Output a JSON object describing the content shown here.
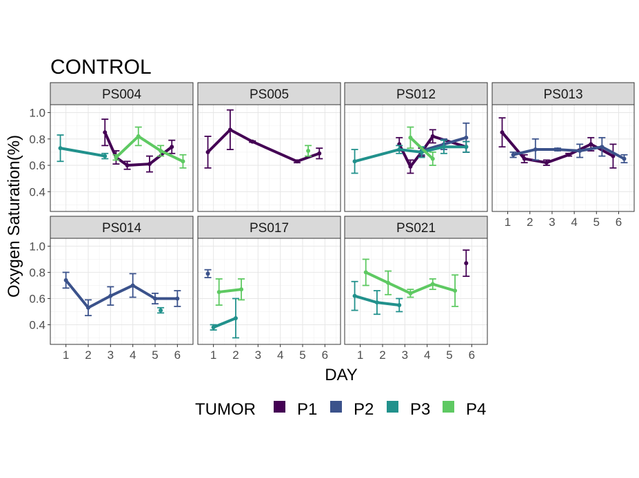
{
  "chart_data": {
    "type": "line",
    "title": "CONTROL",
    "xlabel": "DAY",
    "ylabel": "Oxygen Saturation(%)",
    "x_ticks": [
      "1",
      "2",
      "3",
      "4",
      "5",
      "6"
    ],
    "y_ticks": [
      "0.4",
      "0.6",
      "0.8",
      "1.0"
    ],
    "xlim": [
      0.3,
      6.7
    ],
    "ylim": [
      0.25,
      1.06
    ],
    "grid": true,
    "legend_position": "bottom",
    "legend_title": "TUMOR",
    "series_names": [
      "P1",
      "P2",
      "P3",
      "P4"
    ],
    "colors": {
      "P1": "#440154",
      "P2": "#3b528b",
      "P3": "#21918c",
      "P4": "#5ec962"
    },
    "facets": [
      {
        "name": "PS004",
        "series": [
          {
            "name": "P1",
            "points": [
              [
                2.75,
                0.85,
                0.1
              ],
              [
                3.25,
                0.66,
                0.05
              ],
              [
                3.75,
                0.6,
                0.03
              ],
              [
                4.75,
                0.61,
                0.06
              ],
              [
                5.75,
                0.74,
                0.05
              ]
            ]
          },
          {
            "name": "P3",
            "points": [
              [
                0.75,
                0.73,
                0.1
              ],
              [
                2.75,
                0.67,
                0.02
              ]
            ]
          },
          {
            "name": "P4",
            "points": [
              [
                3.25,
                0.66,
                0.02
              ],
              [
                4.25,
                0.82,
                0.07
              ],
              [
                5.25,
                0.71,
                0.04
              ],
              [
                6.25,
                0.63,
                0.05
              ]
            ]
          }
        ]
      },
      {
        "name": "PS005",
        "series": [
          {
            "name": "P1",
            "points": [
              [
                0.75,
                0.7,
                0.12
              ],
              [
                1.75,
                0.87,
                0.15
              ],
              [
                2.75,
                0.78,
                0.005
              ],
              [
                4.75,
                0.63,
                0.01
              ],
              [
                5.75,
                0.69,
                0.04
              ]
            ]
          },
          {
            "name": "P4",
            "points": [
              [
                5.25,
                0.71,
                0.04
              ]
            ]
          }
        ]
      },
      {
        "name": "PS012",
        "series": [
          {
            "name": "P1",
            "points": [
              [
                2.75,
                0.76,
                0.05
              ],
              [
                3.25,
                0.59,
                0.05
              ],
              [
                3.75,
                0.7,
                0.03
              ],
              [
                4.25,
                0.82,
                0.05
              ],
              [
                5.75,
                0.74,
                0.04
              ]
            ]
          },
          {
            "name": "P2",
            "points": [
              [
                3.75,
                0.71,
                0.03
              ],
              [
                4.75,
                0.76,
                0.04
              ],
              [
                5.75,
                0.81,
                0.11
              ]
            ]
          },
          {
            "name": "P3",
            "points": [
              [
                0.75,
                0.63,
                0.09
              ],
              [
                2.75,
                0.72,
                0.03
              ],
              [
                3.75,
                0.7,
                0.04
              ],
              [
                4.75,
                0.74,
                0.05
              ],
              [
                5.75,
                0.74,
                0.04
              ]
            ]
          },
          {
            "name": "P4",
            "points": [
              [
                3.25,
                0.81,
                0.08
              ],
              [
                4.25,
                0.65,
                0.05
              ]
            ]
          }
        ]
      },
      {
        "name": "PS013",
        "series": [
          {
            "name": "P1",
            "points": [
              [
                0.75,
                0.85,
                0.11
              ],
              [
                1.75,
                0.65,
                0.03
              ],
              [
                2.75,
                0.62,
                0.02
              ],
              [
                3.75,
                0.68,
                0.01
              ],
              [
                4.75,
                0.76,
                0.05
              ],
              [
                5.75,
                0.67,
                0.09
              ]
            ]
          },
          {
            "name": "P2",
            "points": [
              [
                1.25,
                0.68,
                0.02
              ],
              [
                2.25,
                0.72,
                0.08
              ],
              [
                3.25,
                0.72,
                0.01
              ],
              [
                4.25,
                0.71,
                0.05
              ],
              [
                5.25,
                0.74,
                0.07
              ],
              [
                6.25,
                0.65,
                0.03
              ]
            ]
          }
        ]
      },
      {
        "name": "PS014",
        "series": [
          {
            "name": "P2",
            "points": [
              [
                1.0,
                0.74,
                0.06
              ],
              [
                2.0,
                0.53,
                0.06
              ],
              [
                3.0,
                0.62,
                0.07
              ],
              [
                4.0,
                0.7,
                0.09
              ],
              [
                5.0,
                0.6,
                0.04
              ],
              [
                6.0,
                0.6,
                0.06
              ]
            ]
          },
          {
            "name": "P3",
            "points": [
              [
                5.25,
                0.51,
                0.02
              ]
            ]
          }
        ]
      },
      {
        "name": "PS017",
        "series": [
          {
            "name": "P2",
            "points": [
              [
                0.75,
                0.79,
                0.03
              ]
            ]
          },
          {
            "name": "P3",
            "points": [
              [
                1.0,
                0.38,
                0.02
              ],
              [
                2.0,
                0.45,
                0.15
              ]
            ]
          },
          {
            "name": "P4",
            "points": [
              [
                1.25,
                0.65,
                0.1
              ],
              [
                2.25,
                0.67,
                0.08
              ]
            ]
          }
        ]
      },
      {
        "name": "PS021",
        "series": [
          {
            "name": "P1",
            "points": [
              [
                5.75,
                0.87,
                0.1
              ]
            ]
          },
          {
            "name": "P3",
            "points": [
              [
                0.75,
                0.62,
                0.11
              ],
              [
                1.75,
                0.57,
                0.09
              ],
              [
                2.75,
                0.55,
                0.05
              ]
            ]
          },
          {
            "name": "P4",
            "points": [
              [
                1.25,
                0.8,
                0.1
              ],
              [
                2.25,
                0.72,
                0.09
              ],
              [
                3.25,
                0.64,
                0.03
              ],
              [
                4.25,
                0.71,
                0.04
              ],
              [
                5.25,
                0.66,
                0.12
              ]
            ]
          }
        ]
      }
    ]
  }
}
